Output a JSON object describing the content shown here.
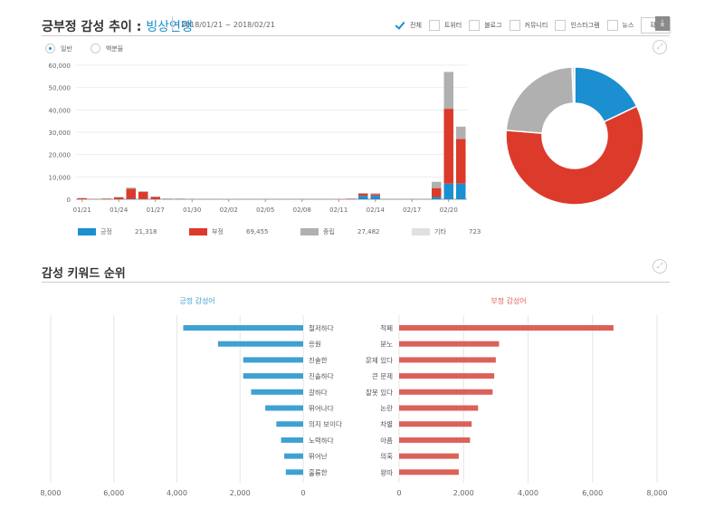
{
  "header": {
    "title": "긍부정 감성 추이 :",
    "brand": "빙상연맹",
    "date_range": "2018/01/21 ~ 2018/02/21"
  },
  "filters": [
    {
      "label": "전체",
      "checked": true
    },
    {
      "label": "트위터",
      "checked": false
    },
    {
      "label": "블로그",
      "checked": false
    },
    {
      "label": "커뮤니티",
      "checked": false
    },
    {
      "label": "인스타그램",
      "checked": false
    },
    {
      "label": "뉴스",
      "checked": false
    }
  ],
  "confirm_label": "확인",
  "icons": {
    "download": "download-icon",
    "expand": "expand-icon"
  },
  "radio": [
    {
      "label": "일반",
      "selected": true
    },
    {
      "label": "백분율",
      "selected": false
    }
  ],
  "colors": {
    "positive": "#1b8fd0",
    "negative": "#dc3a2a",
    "neutral": "#b0b0b0",
    "other": "#e0e0e0",
    "pos_kw": "#3fa1d2",
    "neg_kw": "#dc6158"
  },
  "legend": [
    {
      "label": "긍정",
      "value": "21,318"
    },
    {
      "label": "부정",
      "value": "69,455"
    },
    {
      "label": "중립",
      "value": "27,482"
    },
    {
      "label": "기타",
      "value": "723"
    }
  ],
  "section2_title": "감성 키워드 순위",
  "chart_data": [
    {
      "type": "bar",
      "stacked": true,
      "ylim": [
        0,
        60000
      ],
      "yticks": [
        "0",
        "10,000",
        "20,000",
        "30,000",
        "40,000",
        "50,000",
        "60,000"
      ],
      "categories": [
        "01/21",
        "01/22",
        "01/23",
        "01/24",
        "01/25",
        "01/26",
        "01/27",
        "01/28",
        "01/29",
        "01/30",
        "01/31",
        "02/01",
        "02/02",
        "02/03",
        "02/04",
        "02/05",
        "02/06",
        "02/07",
        "02/08",
        "02/09",
        "02/10",
        "02/11",
        "02/12",
        "02/13",
        "02/14",
        "02/15",
        "02/16",
        "02/17",
        "02/18",
        "02/19",
        "02/20",
        "02/21"
      ],
      "xticks": [
        "01/21",
        "01/24",
        "01/27",
        "01/30",
        "02/02",
        "02/05",
        "02/08",
        "02/11",
        "02/14",
        "02/17",
        "02/20"
      ],
      "series": [
        {
          "name": "긍정",
          "values": [
            0,
            0,
            0,
            0,
            200,
            100,
            0,
            0,
            0,
            0,
            0,
            0,
            0,
            0,
            0,
            0,
            0,
            0,
            0,
            0,
            0,
            0,
            0,
            1500,
            1500,
            0,
            0,
            0,
            0,
            1000,
            7000,
            7000
          ]
        },
        {
          "name": "부정",
          "values": [
            500,
            100,
            200,
            800,
            4500,
            3200,
            1000,
            100,
            100,
            50,
            50,
            50,
            50,
            50,
            50,
            50,
            50,
            50,
            50,
            50,
            50,
            100,
            150,
            1000,
            700,
            100,
            50,
            50,
            50,
            4000,
            33500,
            20000
          ]
        },
        {
          "name": "중립",
          "values": [
            50,
            50,
            150,
            200,
            500,
            300,
            200,
            250,
            250,
            50,
            50,
            50,
            100,
            50,
            50,
            50,
            50,
            50,
            50,
            50,
            50,
            100,
            200,
            300,
            500,
            100,
            50,
            50,
            50,
            2800,
            16500,
            5500
          ]
        },
        {
          "name": "기타",
          "values": [
            0,
            0,
            0,
            0,
            0,
            0,
            0,
            0,
            0,
            0,
            0,
            0,
            0,
            0,
            0,
            0,
            0,
            0,
            0,
            0,
            0,
            0,
            0,
            0,
            0,
            0,
            0,
            0,
            0,
            0,
            0,
            0
          ]
        }
      ]
    },
    {
      "type": "pie",
      "donut": true,
      "labels": [
        "긍정",
        "부정",
        "중립",
        "기타"
      ],
      "values": [
        21318,
        69455,
        27482,
        723
      ]
    },
    {
      "type": "bar",
      "orientation": "horizontal",
      "title": "긍정 감성어",
      "xlim": [
        0,
        8000
      ],
      "xticks": [
        "8,000",
        "6,000",
        "4,000",
        "2,000",
        "0"
      ],
      "categories": [
        "철저하다",
        "응원",
        "진솔한",
        "진솔하다",
        "갈하다",
        "뛰어나다",
        "의지 보이다",
        "노력하다",
        "뛰어난",
        "훌륭한"
      ],
      "values": [
        3800,
        2700,
        1900,
        1900,
        1650,
        1200,
        850,
        700,
        600,
        550
      ]
    },
    {
      "type": "bar",
      "orientation": "horizontal",
      "title": "부정 감성어",
      "xlim": [
        0,
        8000
      ],
      "xticks": [
        "0",
        "2,000",
        "4,000",
        "6,000",
        "8,000"
      ],
      "categories": [
        "적폐",
        "분노",
        "문제 있다",
        "큰 문제",
        "잘못 있다",
        "논란",
        "차별",
        "아픔",
        "의혹",
        "왕따"
      ],
      "values": [
        6650,
        3100,
        3000,
        2950,
        2900,
        2450,
        2250,
        2200,
        1850,
        1850
      ]
    }
  ]
}
